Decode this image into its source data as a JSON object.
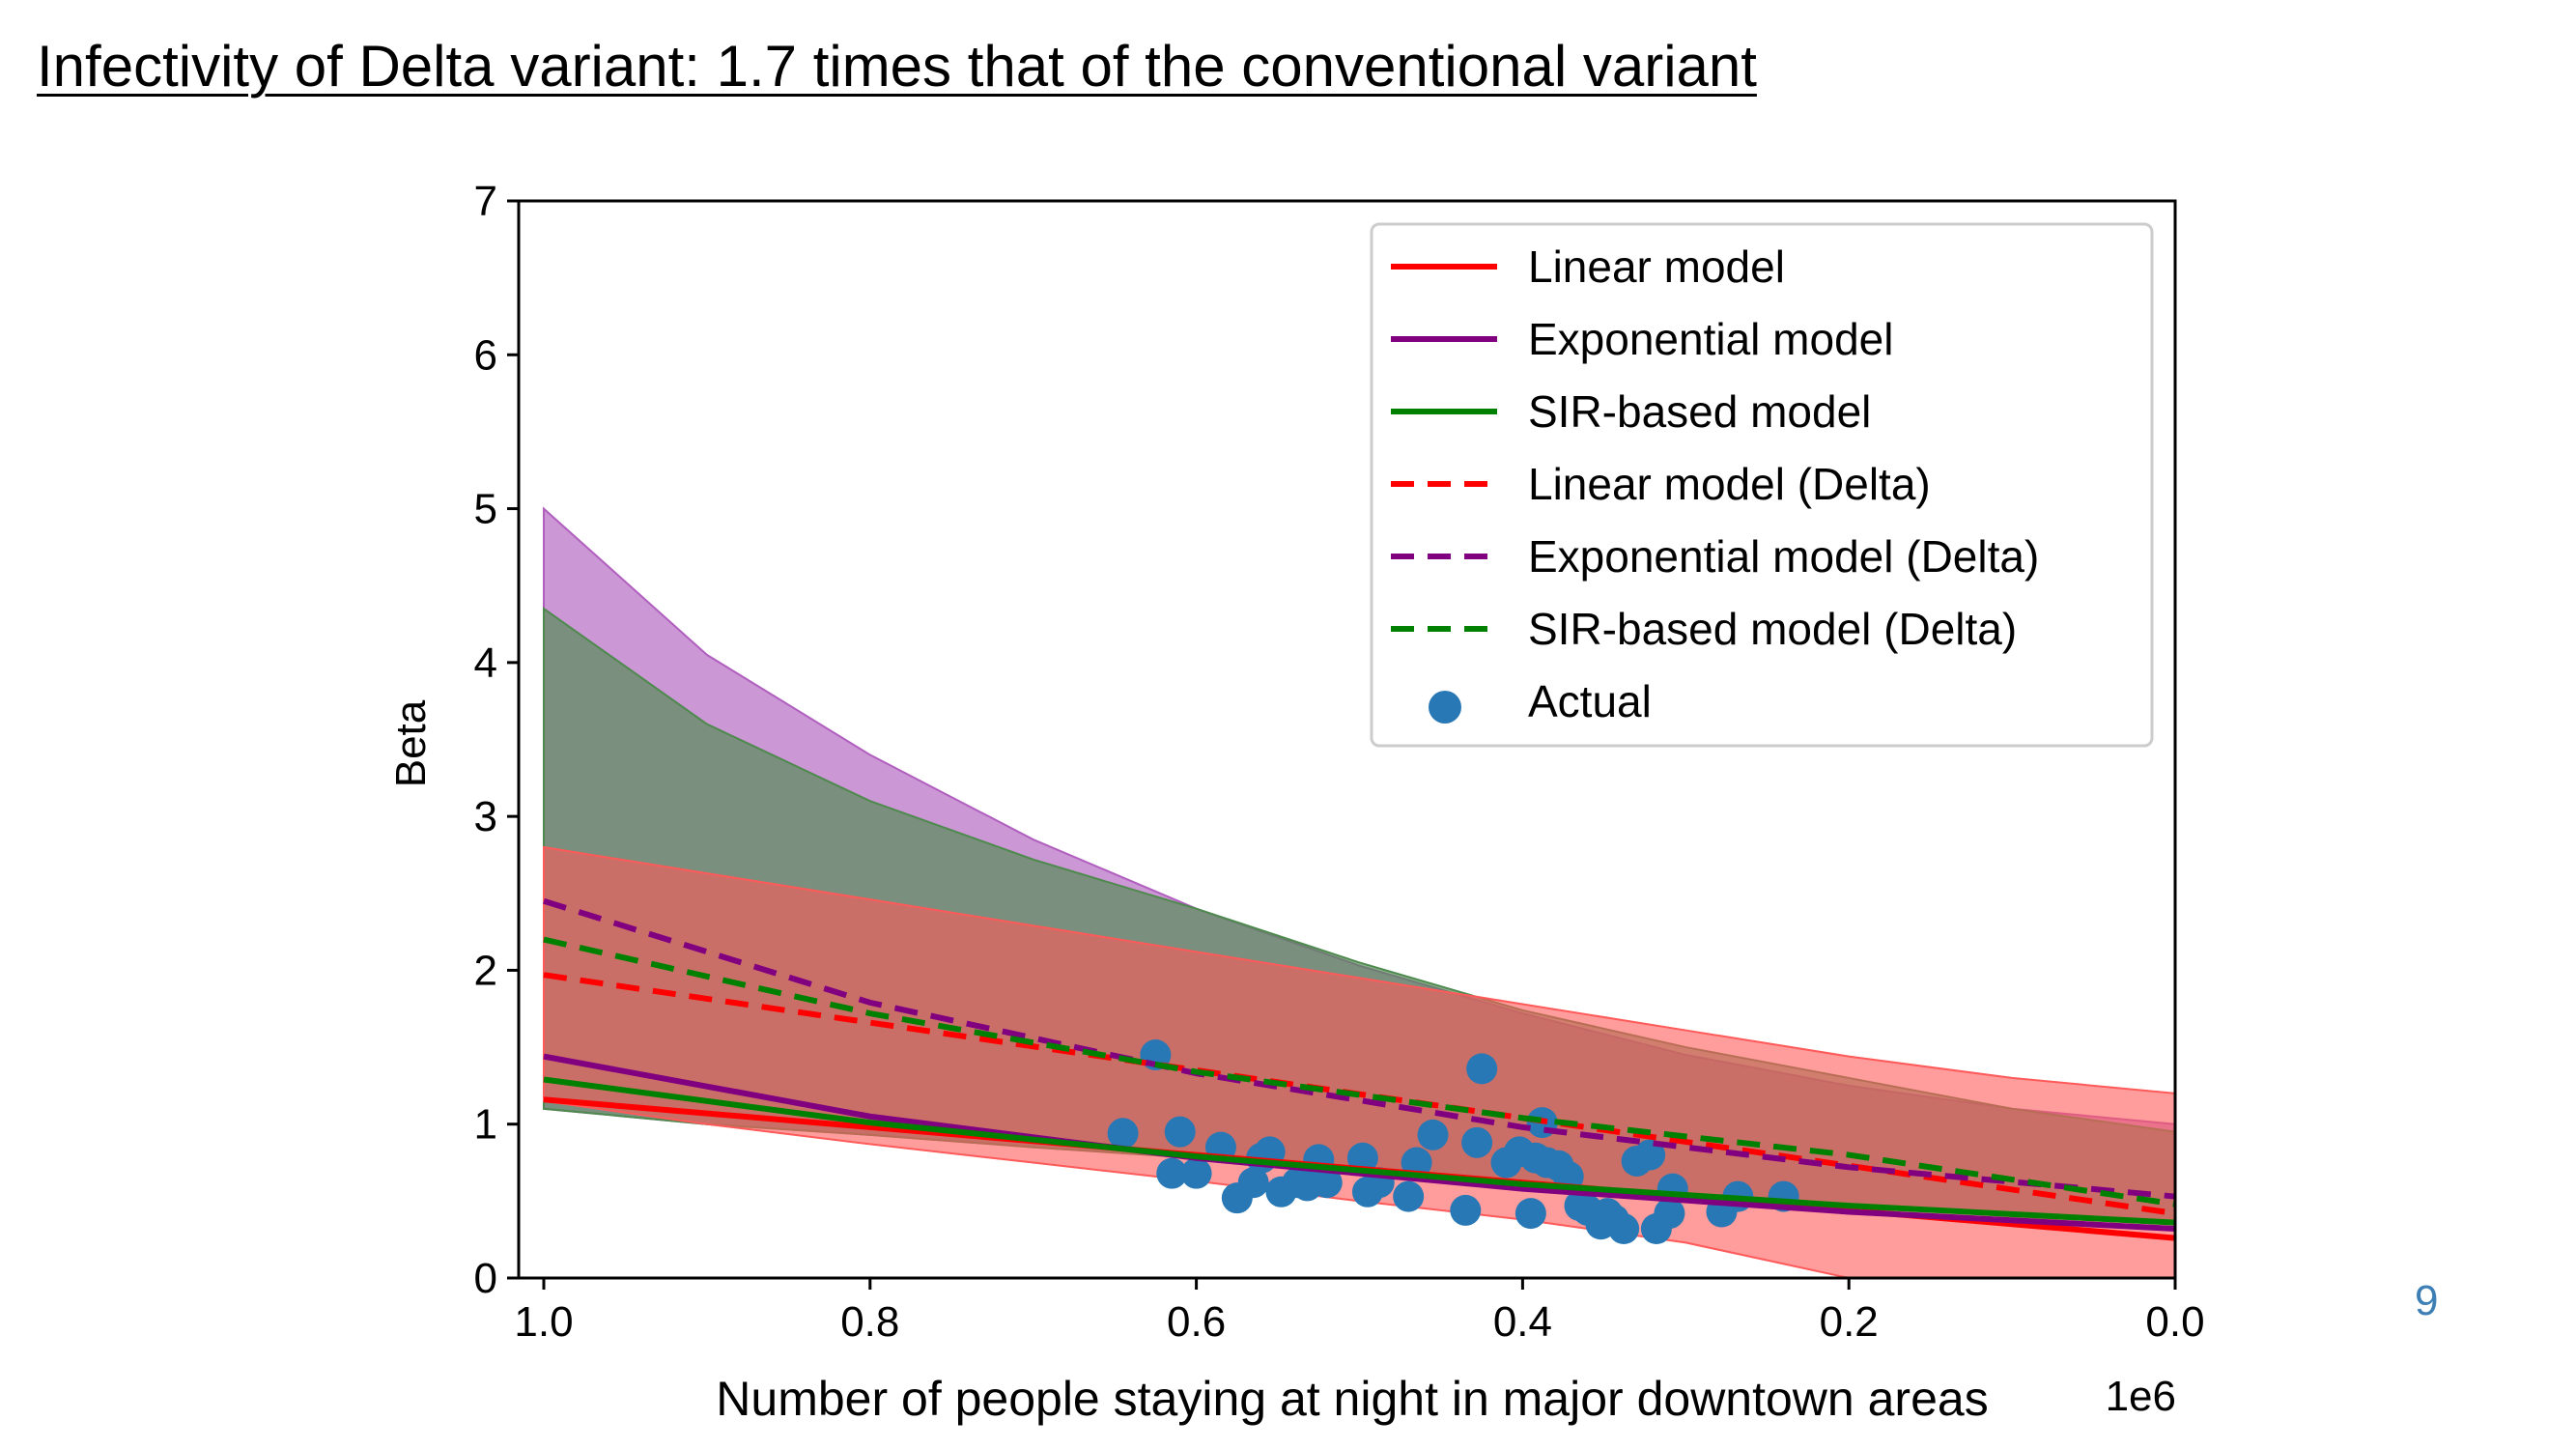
{
  "slide": {
    "title": "Infectivity of Delta variant: 1.7 times that of the conventional variant",
    "page_number": "9"
  },
  "chart_data": {
    "type": "line",
    "title": "",
    "xlabel": "Number of people staying at night in major downtown areas",
    "ylabel": "Beta",
    "x_offset_label": "1e6",
    "xlim": [
      1.0,
      0.0
    ],
    "ylim": [
      0,
      7
    ],
    "x_ticks": [
      1.0,
      0.8,
      0.6,
      0.4,
      0.2,
      0.0
    ],
    "x_tick_labels": [
      "1.0",
      "0.8",
      "0.6",
      "0.4",
      "0.2",
      "0.0"
    ],
    "y_ticks": [
      0,
      1,
      2,
      3,
      4,
      5,
      6,
      7
    ],
    "y_tick_labels": [
      "0",
      "1",
      "2",
      "3",
      "4",
      "5",
      "6",
      "7"
    ],
    "grid": false,
    "legend_position": "top-right",
    "x_domain": [
      1.0,
      0.0
    ],
    "bands": [
      {
        "name": "Exponential model (Delta) range",
        "color": "#b05fbf",
        "opacity": 0.65,
        "x": [
          1.0,
          0.9,
          0.8,
          0.7,
          0.6,
          0.5,
          0.4,
          0.3,
          0.2,
          0.1,
          0.0
        ],
        "upper": [
          5.0,
          4.05,
          3.4,
          2.85,
          2.4,
          2.03,
          1.72,
          1.45,
          1.25,
          1.1,
          1.0
        ],
        "lower": [
          1.1,
          1.0,
          0.93,
          0.85,
          0.78,
          0.7,
          0.62,
          0.55,
          0.47,
          0.4,
          0.35
        ]
      },
      {
        "name": "SIR-based model (Delta) range",
        "color": "#4e8a4e",
        "opacity": 0.65,
        "x": [
          1.0,
          0.9,
          0.8,
          0.7,
          0.6,
          0.5,
          0.4,
          0.3,
          0.2,
          0.1,
          0.0
        ],
        "upper": [
          4.35,
          3.6,
          3.1,
          2.72,
          2.4,
          2.05,
          1.74,
          1.5,
          1.3,
          1.1,
          0.95
        ],
        "lower": [
          1.1,
          1.0,
          0.93,
          0.85,
          0.78,
          0.7,
          0.62,
          0.55,
          0.47,
          0.4,
          0.35
        ]
      },
      {
        "name": "Linear model (Delta) range",
        "color": "#ff5a5a",
        "opacity": 0.6,
        "x": [
          1.0,
          0.9,
          0.8,
          0.7,
          0.6,
          0.5,
          0.4,
          0.3,
          0.2,
          0.1,
          0.0
        ],
        "upper": [
          2.8,
          2.63,
          2.46,
          2.29,
          2.12,
          1.95,
          1.78,
          1.61,
          1.44,
          1.3,
          1.2
        ],
        "lower": [
          1.15,
          1.0,
          0.87,
          0.75,
          0.63,
          0.5,
          0.38,
          0.23,
          0.0,
          0.0,
          0.0
        ]
      }
    ],
    "series": [
      {
        "name": "Linear model",
        "color": "#ff0000",
        "dash": false,
        "x": [
          1.0,
          0.8,
          0.6,
          0.4,
          0.2,
          0.0
        ],
        "y": [
          1.16,
          0.98,
          0.8,
          0.62,
          0.44,
          0.26
        ]
      },
      {
        "name": "Exponential model",
        "color": "#800080",
        "dash": false,
        "x": [
          1.0,
          0.8,
          0.6,
          0.4,
          0.2,
          0.0
        ],
        "y": [
          1.44,
          1.05,
          0.78,
          0.58,
          0.43,
          0.32
        ]
      },
      {
        "name": "SIR-based model",
        "color": "#008000",
        "dash": false,
        "x": [
          1.0,
          0.8,
          0.6,
          0.4,
          0.2,
          0.0
        ],
        "y": [
          1.29,
          1.01,
          0.79,
          0.61,
          0.47,
          0.36
        ]
      },
      {
        "name": "Linear model (Delta)",
        "color": "#ff0000",
        "dash": true,
        "x": [
          1.0,
          0.8,
          0.6,
          0.4,
          0.2,
          0.0
        ],
        "y": [
          1.97,
          1.66,
          1.35,
          1.04,
          0.73,
          0.42
        ]
      },
      {
        "name": "Exponential model (Delta)",
        "color": "#800080",
        "dash": true,
        "x": [
          1.0,
          0.8,
          0.6,
          0.4,
          0.2,
          0.0
        ],
        "y": [
          2.45,
          1.79,
          1.33,
          0.98,
          0.72,
          0.53
        ]
      },
      {
        "name": "SIR-based model (Delta)",
        "color": "#008000",
        "dash": true,
        "x": [
          1.0,
          0.8,
          0.6,
          0.4,
          0.2,
          0.0
        ],
        "y": [
          2.2,
          1.72,
          1.34,
          1.04,
          0.8,
          0.48
        ]
      }
    ],
    "scatter": {
      "name": "Actual",
      "color": "#2878b5",
      "points": [
        [
          0.645,
          0.94
        ],
        [
          0.625,
          1.45
        ],
        [
          0.615,
          0.68
        ],
        [
          0.61,
          0.95
        ],
        [
          0.6,
          0.68
        ],
        [
          0.585,
          0.85
        ],
        [
          0.575,
          0.52
        ],
        [
          0.565,
          0.62
        ],
        [
          0.56,
          0.78
        ],
        [
          0.555,
          0.82
        ],
        [
          0.548,
          0.56
        ],
        [
          0.538,
          0.62
        ],
        [
          0.532,
          0.6
        ],
        [
          0.525,
          0.77
        ],
        [
          0.52,
          0.62
        ],
        [
          0.498,
          0.78
        ],
        [
          0.495,
          0.56
        ],
        [
          0.488,
          0.62
        ],
        [
          0.47,
          0.53
        ],
        [
          0.465,
          0.75
        ],
        [
          0.455,
          0.93
        ],
        [
          0.435,
          0.44
        ],
        [
          0.428,
          0.88
        ],
        [
          0.425,
          1.36
        ],
        [
          0.41,
          0.75
        ],
        [
          0.402,
          0.82
        ],
        [
          0.395,
          0.42
        ],
        [
          0.392,
          0.78
        ],
        [
          0.388,
          1.01
        ],
        [
          0.385,
          0.75
        ],
        [
          0.378,
          0.73
        ],
        [
          0.372,
          0.66
        ],
        [
          0.365,
          0.47
        ],
        [
          0.36,
          0.44
        ],
        [
          0.352,
          0.35
        ],
        [
          0.348,
          0.42
        ],
        [
          0.344,
          0.38
        ],
        [
          0.338,
          0.32
        ],
        [
          0.33,
          0.76
        ],
        [
          0.322,
          0.8
        ],
        [
          0.318,
          0.32
        ],
        [
          0.31,
          0.42
        ],
        [
          0.308,
          0.58
        ],
        [
          0.278,
          0.43
        ],
        [
          0.268,
          0.53
        ],
        [
          0.24,
          0.53
        ]
      ]
    }
  }
}
